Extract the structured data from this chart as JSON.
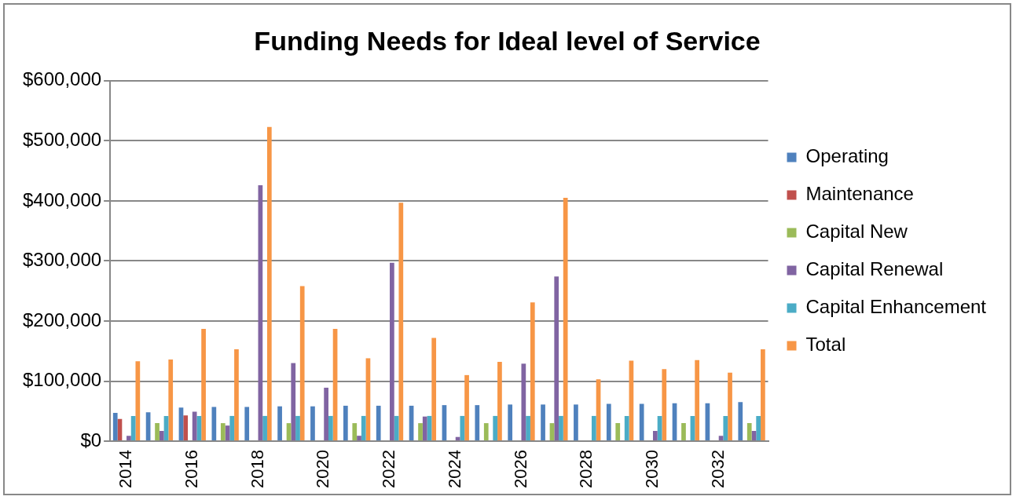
{
  "chart_data": {
    "type": "bar",
    "title": "Funding Needs for Ideal level of Service",
    "categories": [
      "2014",
      null,
      "2016",
      null,
      "2018",
      null,
      "2020",
      null,
      "2022",
      null,
      "2024",
      null,
      "2026",
      null,
      "2028",
      null,
      "2030",
      null,
      "2032",
      null
    ],
    "series": [
      {
        "name": "Operating",
        "color": "#4f81bd",
        "values": [
          47000,
          48000,
          56000,
          57000,
          57000,
          58000,
          58000,
          59000,
          59000,
          59000,
          60000,
          60000,
          61000,
          61000,
          61000,
          62000,
          62000,
          63000,
          63000,
          65000
        ]
      },
      {
        "name": "Maintenance",
        "color": "#c0504d",
        "values": [
          37000,
          0,
          43000,
          0,
          0,
          0,
          0,
          0,
          0,
          0,
          0,
          0,
          0,
          0,
          0,
          0,
          0,
          0,
          0,
          0
        ]
      },
      {
        "name": "Capital New",
        "color": "#9bbb59",
        "values": [
          0,
          30000,
          0,
          30000,
          0,
          30000,
          0,
          30000,
          0,
          30000,
          0,
          30000,
          0,
          30000,
          0,
          30000,
          0,
          30000,
          0,
          30000
        ]
      },
      {
        "name": "Capital Renewal",
        "color": "#8064a2",
        "values": [
          9000,
          17000,
          49000,
          26000,
          426000,
          130000,
          89000,
          9000,
          297000,
          41000,
          7000,
          0,
          129000,
          274000,
          0,
          0,
          17000,
          0,
          9000,
          17000
        ]
      },
      {
        "name": "Capital Enhancement",
        "color": "#4bacc6",
        "values": [
          42000,
          42000,
          42000,
          42000,
          42000,
          42000,
          42000,
          42000,
          42000,
          42000,
          42000,
          42000,
          42000,
          42000,
          42000,
          42000,
          42000,
          42000,
          42000,
          42000
        ]
      },
      {
        "name": "Total",
        "color": "#f79646",
        "values": [
          133000,
          136000,
          187000,
          153000,
          523000,
          258000,
          187000,
          138000,
          397000,
          172000,
          110000,
          132000,
          231000,
          405000,
          103000,
          134000,
          120000,
          135000,
          114000,
          153000
        ]
      }
    ],
    "ylim": [
      0,
      600000
    ],
    "yticks": [
      {
        "value": 0,
        "label": "$0"
      },
      {
        "value": 100000,
        "label": "$100,000"
      },
      {
        "value": 200000,
        "label": "$200,000"
      },
      {
        "value": 300000,
        "label": "$300,000"
      },
      {
        "value": 400000,
        "label": "$400,000"
      },
      {
        "value": 500000,
        "label": "$500,000"
      },
      {
        "value": 600000,
        "label": "$600,000"
      }
    ],
    "grid": "y",
    "legend": "right"
  }
}
